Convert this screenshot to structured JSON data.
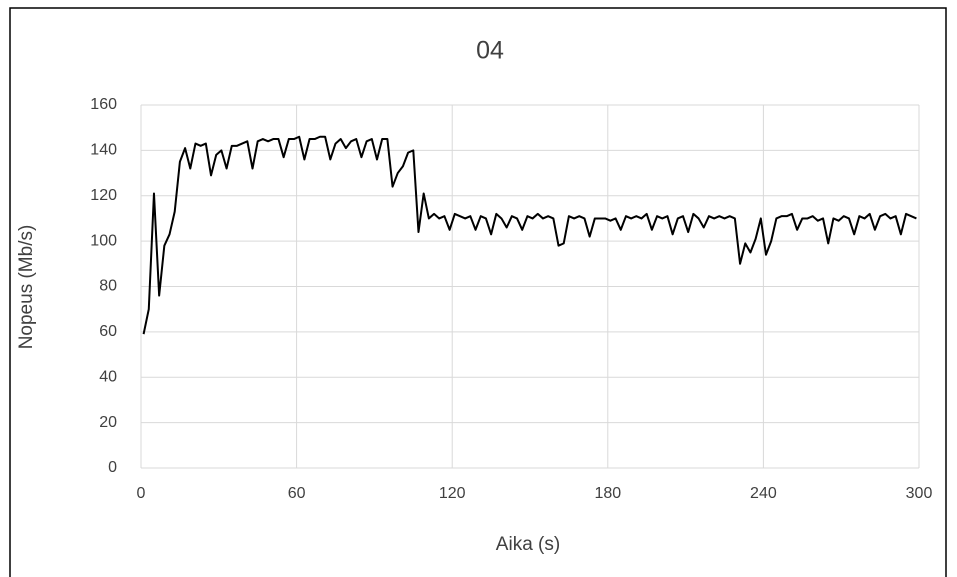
{
  "chart_data": {
    "type": "line",
    "title": "04",
    "x_label": "Aika (s)",
    "y_label": "Nopeus (Mb/s)",
    "color": "#000000",
    "grid": true,
    "xlim": [
      0,
      300
    ],
    "xticks": [
      0,
      60,
      120,
      180,
      240,
      300
    ],
    "ylim": [
      0,
      160
    ],
    "yticks": [
      0,
      20,
      40,
      60,
      80,
      100,
      120,
      140,
      160
    ],
    "x": [
      1,
      3,
      5,
      7,
      9,
      11,
      13,
      15,
      17,
      19,
      21,
      23,
      25,
      27,
      29,
      31,
      33,
      35,
      37,
      39,
      41,
      43,
      45,
      47,
      49,
      51,
      53,
      55,
      57,
      59,
      61,
      63,
      65,
      67,
      69,
      71,
      73,
      75,
      77,
      79,
      81,
      83,
      85,
      87,
      89,
      91,
      93,
      95,
      97,
      99,
      101,
      103,
      105,
      107,
      109,
      111,
      113,
      115,
      117,
      119,
      121,
      123,
      125,
      127,
      129,
      131,
      133,
      135,
      137,
      139,
      141,
      143,
      145,
      147,
      149,
      151,
      153,
      155,
      157,
      159,
      161,
      163,
      165,
      167,
      169,
      171,
      173,
      175,
      177,
      179,
      181,
      183,
      185,
      187,
      189,
      191,
      193,
      195,
      197,
      199,
      201,
      203,
      205,
      207,
      209,
      211,
      213,
      215,
      217,
      219,
      221,
      223,
      225,
      227,
      229,
      231,
      233,
      235,
      237,
      239,
      241,
      243,
      245,
      247,
      249,
      251,
      253,
      255,
      257,
      259,
      261,
      263,
      265,
      267,
      269,
      271,
      273,
      275,
      277,
      279,
      281,
      283,
      285,
      287,
      289,
      291,
      293,
      295,
      297,
      299
    ],
    "values": [
      59,
      70,
      121,
      76,
      98,
      103,
      113,
      135,
      141,
      132,
      143,
      142,
      143,
      129,
      138,
      140,
      132,
      142,
      142,
      143,
      144,
      132,
      144,
      145,
      144,
      145,
      145,
      137,
      145,
      145,
      146,
      136,
      145,
      145,
      146,
      146,
      136,
      143,
      145,
      141,
      144,
      145,
      137,
      144,
      145,
      136,
      145,
      145,
      124,
      130,
      133,
      139,
      140,
      104,
      121,
      110,
      112,
      110,
      111,
      105,
      112,
      111,
      110,
      111,
      105,
      111,
      110,
      103,
      112,
      110,
      106,
      111,
      110,
      105,
      111,
      110,
      112,
      110,
      111,
      110,
      98,
      99,
      111,
      110,
      111,
      110,
      102,
      110,
      110,
      110,
      109,
      110,
      105,
      111,
      110,
      111,
      110,
      112,
      105,
      111,
      110,
      111,
      103,
      110,
      111,
      104,
      112,
      110,
      106,
      111,
      110,
      111,
      110,
      111,
      110,
      90,
      99,
      95,
      101,
      110,
      94,
      100,
      110,
      111,
      111,
      112,
      105,
      110,
      110,
      111,
      109,
      110,
      99,
      110,
      109,
      111,
      110,
      103,
      111,
      110,
      112,
      105,
      111,
      112,
      110,
      111,
      103,
      112,
      111,
      110
    ]
  }
}
